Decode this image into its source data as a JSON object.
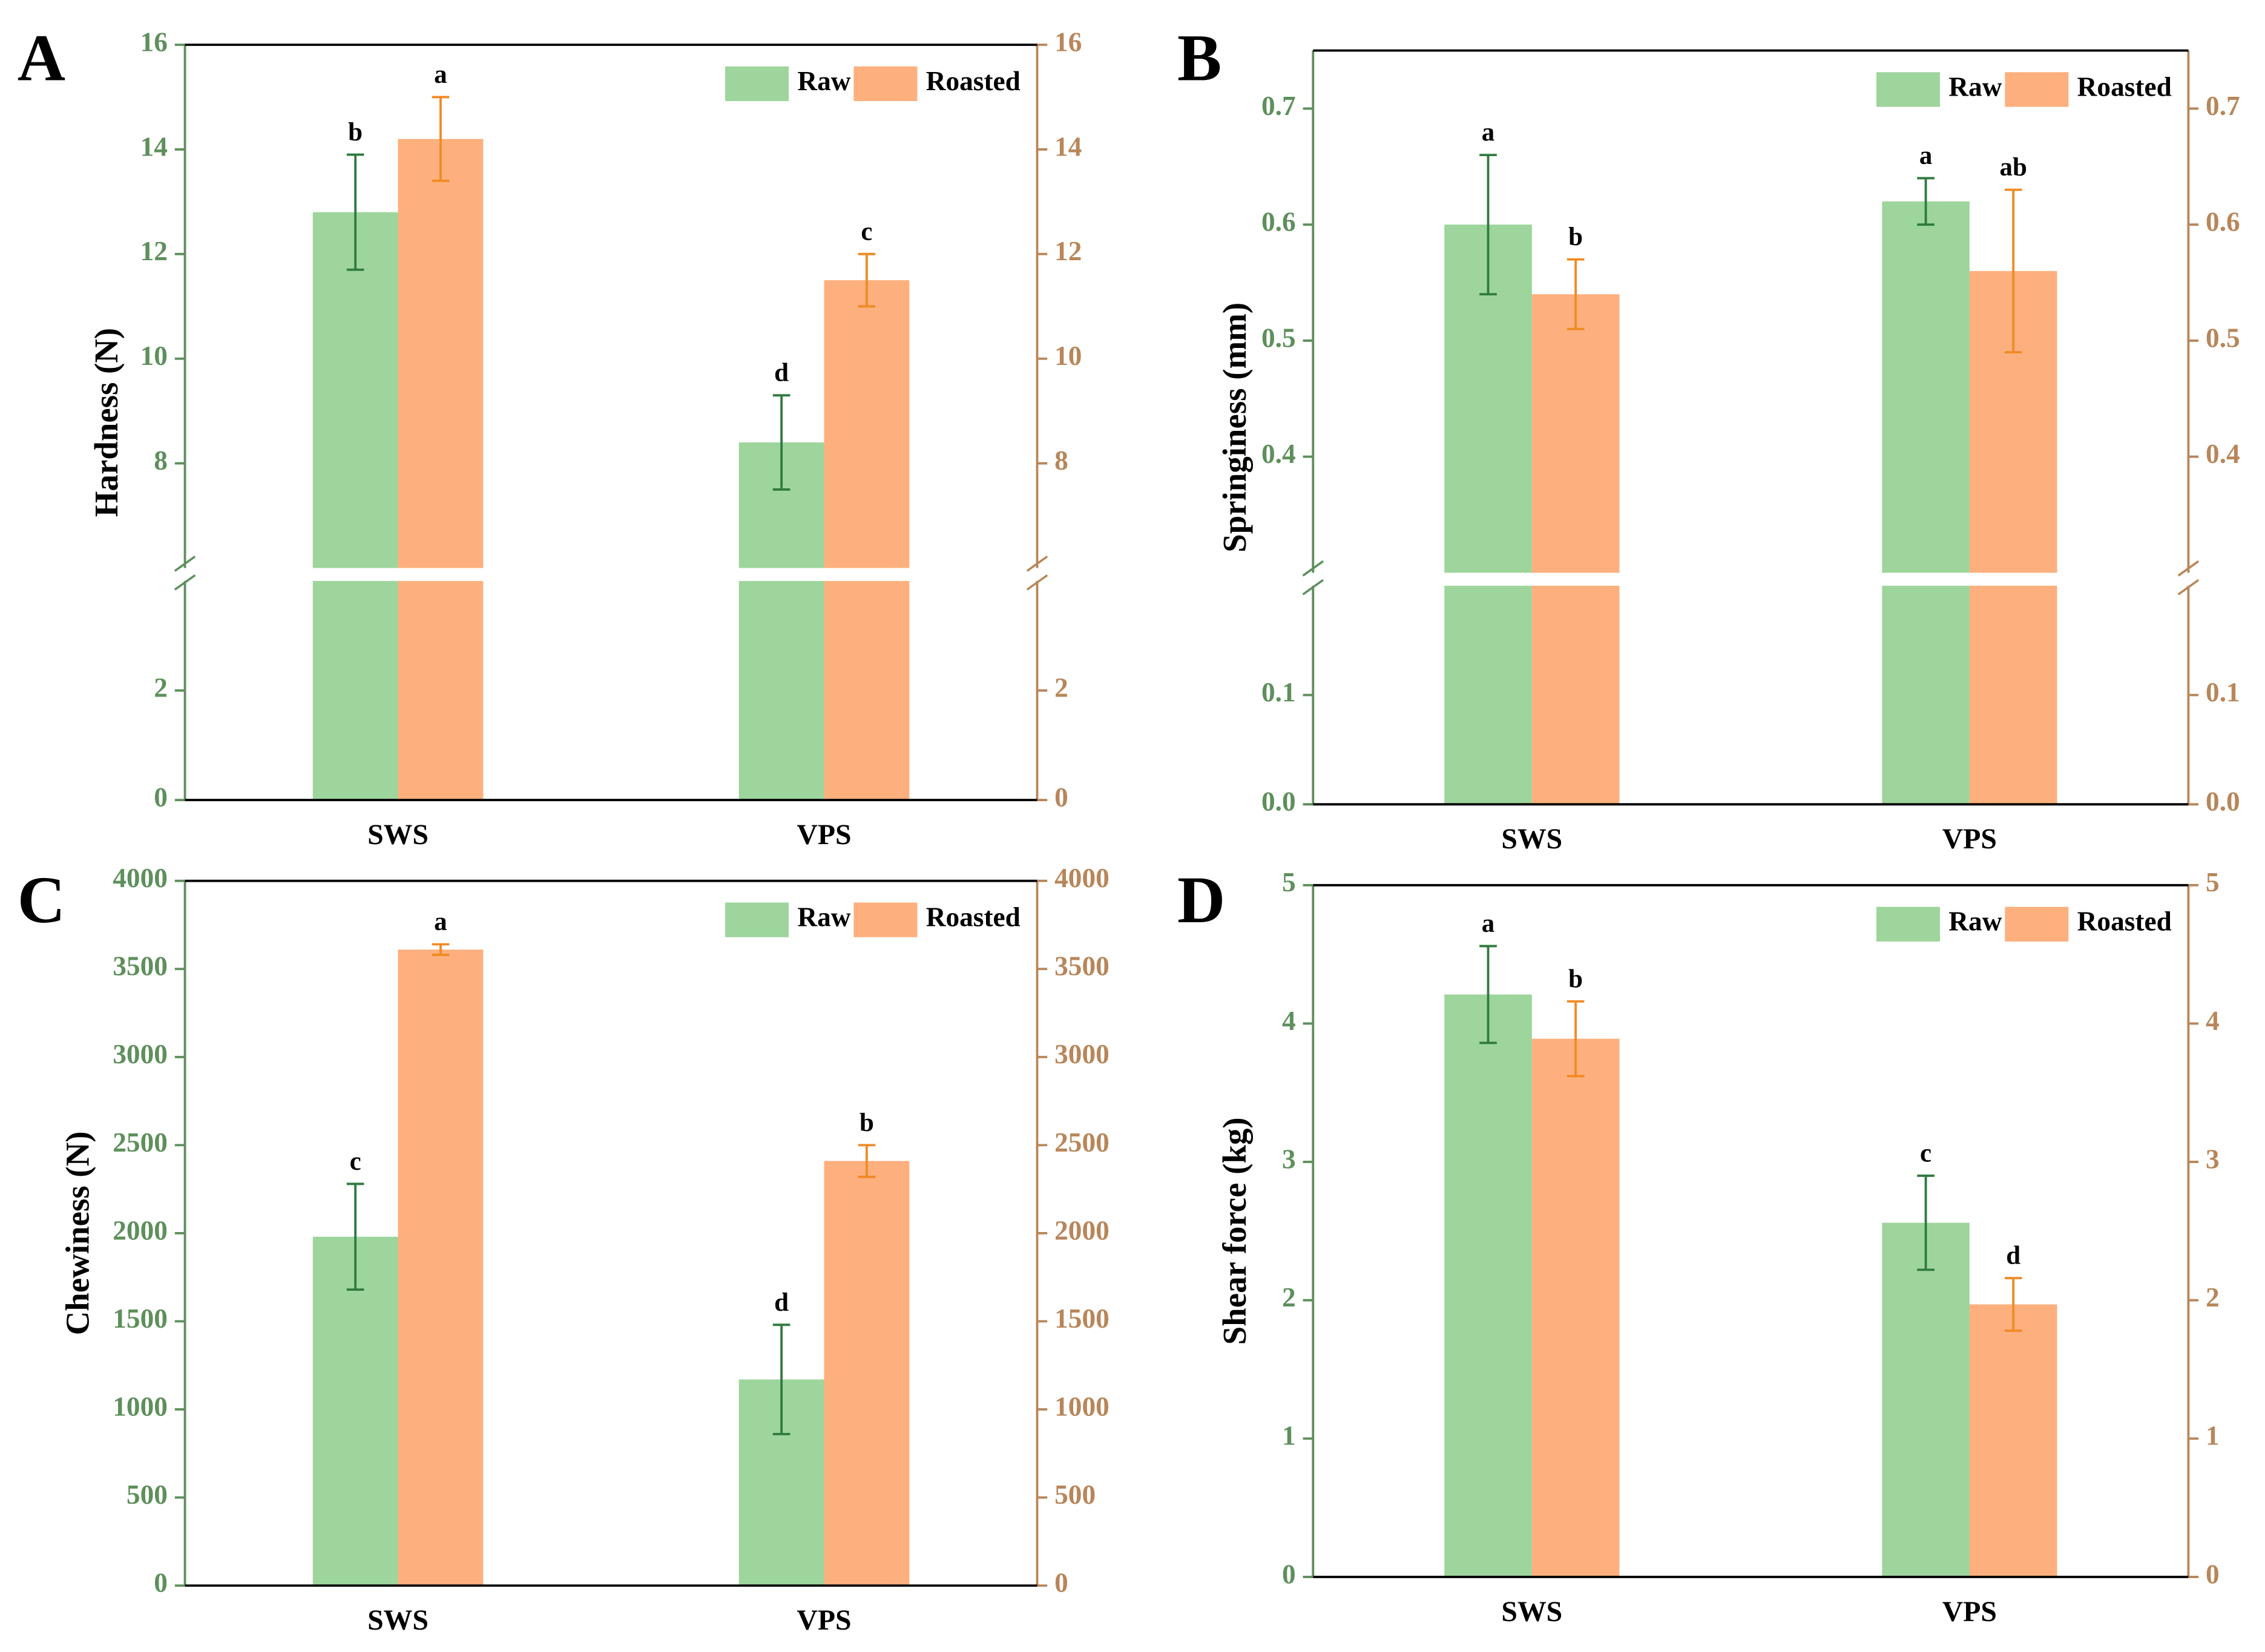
{
  "chart_data": [
    {
      "type": "bar",
      "panel": "A",
      "y_label": "Hardness (N)",
      "categories": [
        "SWS",
        "VPS"
      ],
      "series": [
        {
          "name": "Raw",
          "color": "#9dd59c",
          "error_color": "#2f7a3f",
          "values": [
            12.8,
            8.4
          ],
          "errors": [
            1.1,
            0.9
          ],
          "letters": [
            "b",
            "d"
          ]
        },
        {
          "name": "Roasted",
          "color": "#fdb07d",
          "error_color": "#f08a24",
          "values": [
            14.2,
            11.5
          ],
          "errors": [
            0.8,
            0.5
          ],
          "letters": [
            "a",
            "c"
          ]
        }
      ],
      "ylim_lower": [
        0,
        4
      ],
      "ylim_upper": [
        6,
        16
      ],
      "yticks": [
        0,
        2,
        8,
        10,
        12,
        14,
        16
      ],
      "left_axis_color": "#5e8f5c",
      "right_axis_color": "#b8865a",
      "legend": "upper right"
    },
    {
      "type": "bar",
      "panel": "B",
      "y_label": "Springiness (mm)",
      "categories": [
        "SWS",
        "VPS"
      ],
      "series": [
        {
          "name": "Raw",
          "color": "#9dd59c",
          "error_color": "#2f7a3f",
          "values": [
            0.6,
            0.62
          ],
          "errors": [
            0.06,
            0.02
          ],
          "letters": [
            "a",
            "a"
          ]
        },
        {
          "name": "Roasted",
          "color": "#fdb07d",
          "error_color": "#f08a24",
          "values": [
            0.54,
            0.56
          ],
          "errors": [
            0.03,
            0.07
          ],
          "letters": [
            "b",
            "ab"
          ]
        }
      ],
      "ylim_lower": [
        0,
        0.2
      ],
      "ylim_upper": [
        0.3,
        0.75
      ],
      "yticks": [
        {
          "value": 0,
          "label": "0.0"
        },
        0.1,
        0.4,
        0.5,
        0.6,
        0.7
      ],
      "left_axis_color": "#5e8f5c",
      "right_axis_color": "#b8865a",
      "legend": "upper right"
    },
    {
      "type": "bar",
      "panel": "C",
      "y_label": "Chewiness (N)",
      "categories": [
        "SWS",
        "VPS"
      ],
      "series": [
        {
          "name": "Raw",
          "color": "#9dd59c",
          "error_color": "#2f7a3f",
          "values": [
            1980,
            1170
          ],
          "errors": [
            300,
            310
          ],
          "letters": [
            "c",
            "d"
          ]
        },
        {
          "name": "Roasted",
          "color": "#fdb07d",
          "error_color": "#f08a24",
          "values": [
            3610,
            2410
          ],
          "errors": [
            30,
            90
          ],
          "letters": [
            "a",
            "b"
          ]
        }
      ],
      "ylim": [
        0,
        4000
      ],
      "yticks": [
        0,
        500,
        1000,
        1500,
        2000,
        2500,
        3000,
        3500,
        4000
      ],
      "left_axis_color": "#5e8f5c",
      "right_axis_color": "#b8865a",
      "legend": "upper right"
    },
    {
      "type": "bar",
      "panel": "D",
      "y_label": "Shear force (kg)",
      "categories": [
        "SWS",
        "VPS"
      ],
      "series": [
        {
          "name": "Raw",
          "color": "#9dd59c",
          "error_color": "#2f7a3f",
          "values": [
            4.21,
            2.56
          ],
          "errors": [
            0.35,
            0.34
          ],
          "letters": [
            "a",
            "c"
          ]
        },
        {
          "name": "Roasted",
          "color": "#fdb07d",
          "error_color": "#f08a24",
          "values": [
            3.89,
            1.97
          ],
          "errors": [
            0.27,
            0.19
          ],
          "letters": [
            "b",
            "d"
          ]
        }
      ],
      "ylim": [
        0,
        5
      ],
      "yticks": [
        0,
        1,
        2,
        3,
        4,
        5
      ],
      "left_axis_color": "#5e8f5c",
      "right_axis_color": "#b8865a",
      "legend": "upper right"
    }
  ]
}
